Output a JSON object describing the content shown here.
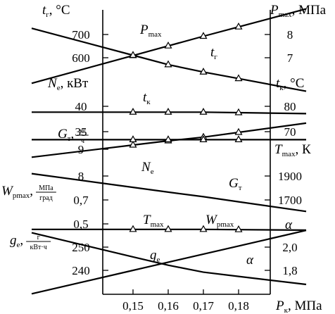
{
  "chart_data": {
    "type": "line",
    "x": [
      0.15,
      0.16,
      0.17,
      0.18
    ],
    "x_axis": {
      "symbol": "P",
      "subscript": "к",
      "unit": ", МПа",
      "tick_labels": [
        "0,15",
        "0,16",
        "0,17",
        "0,18"
      ]
    },
    "left_axes": [
      {
        "symbol": "t",
        "subscript": "г",
        "unit": ", °C",
        "tick_labels": [
          "700",
          "600"
        ]
      },
      {
        "symbol": "N",
        "subscript": "е",
        "unit": ", кВт",
        "tick_labels": [
          "40",
          "35"
        ]
      },
      {
        "symbol": "G",
        "subscript": "т",
        "unit_num": "кг",
        "unit_den": "ч",
        "tick_labels": [
          "9",
          "8"
        ]
      },
      {
        "symbol": "W",
        "subscript": "pmax",
        "unit_num": "МПа",
        "unit_den": "град",
        "tick_labels": [
          "0,7",
          "0,5"
        ]
      },
      {
        "symbol": "g",
        "subscript": "e",
        "unit_num": "г",
        "unit_den": "кВт·ч",
        "tick_labels": [
          "250",
          "240"
        ]
      }
    ],
    "right_axes": [
      {
        "symbol": "P",
        "subscript": "max",
        "unit": ", МПа",
        "tick_labels": [
          "8",
          "7"
        ]
      },
      {
        "symbol": "t",
        "subscript": "к",
        "unit": ", °C",
        "tick_labels": [
          "80",
          "70"
        ]
      },
      {
        "symbol": "T",
        "subscript": "max",
        "unit": ", К",
        "tick_labels": [
          "1900",
          "1700"
        ]
      },
      {
        "symbol": "α",
        "subscript": "",
        "unit": "",
        "tick_labels": [
          "2,0",
          "1,8"
        ]
      }
    ],
    "series": [
      {
        "name": "P",
        "sub": "max",
        "scale": "right:P_max",
        "values": [
          7.17,
          7.55,
          7.93,
          8.3
        ],
        "markers": true
      },
      {
        "name": "t",
        "sub": "г",
        "scale": "left:t_г",
        "values": [
          618,
          581,
          552,
          526
        ],
        "markers": true
      },
      {
        "name": "t",
        "sub": "к",
        "scale": "right:t_к",
        "values": [
          77.7,
          77.7,
          77.7,
          77.5
        ],
        "markers": true
      },
      {
        "name": "G",
        "sub": "т",
        "scale": "left:G_т",
        "values": [
          9.15,
          9.3,
          9.43,
          9.6
        ],
        "markers": true
      },
      {
        "name": "N",
        "sub": "е",
        "scale": "left:N_е",
        "values": [
          32.1,
          32.1,
          32.1,
          32.1
        ],
        "markers": true
      },
      {
        "name": "T",
        "sub": "max",
        "scale": "right:T_max",
        "values": [
          1805,
          1765,
          1727,
          1685
        ],
        "markers": false
      },
      {
        "name": "W",
        "sub": "pmax",
        "scale": "left:W_pmax",
        "values": [
          0.48,
          0.48,
          0.48,
          0.478
        ],
        "markers": true
      },
      {
        "name": "g",
        "sub": "e",
        "scale": "left:g_e",
        "values": [
          245.8,
          242.2,
          239.2,
          237.4
        ],
        "markers": false
      },
      {
        "name": "α",
        "sub": "",
        "scale": "right:α",
        "values": [
          1.8,
          1.87,
          1.94,
          2.01
        ],
        "markers": false
      }
    ],
    "grid": false
  }
}
